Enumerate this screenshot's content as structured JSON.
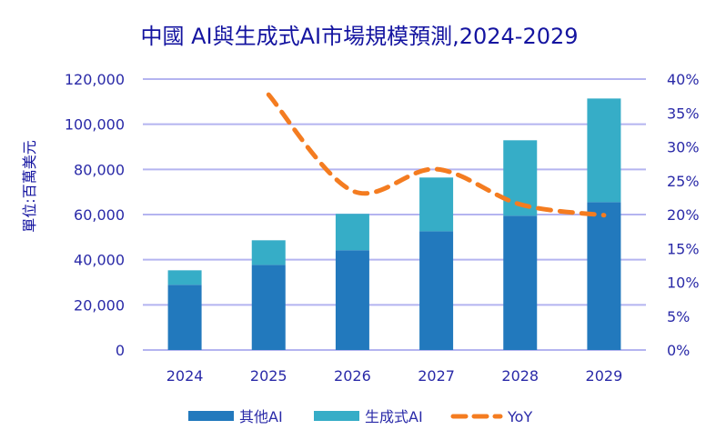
{
  "chart_data": {
    "type": "bar",
    "title": "中國 AI與生成式AI市場規模預測,2024-2029",
    "ylabel": "單位:百萬美元",
    "categories": [
      "2024",
      "2025",
      "2026",
      "2027",
      "2028",
      "2029"
    ],
    "stacked": true,
    "series": [
      {
        "name": "其他AI",
        "type": "bar",
        "axis": "left",
        "color": "#2279bd",
        "values": [
          28900,
          37700,
          44200,
          52600,
          59500,
          65500
        ]
      },
      {
        "name": "生成式AI",
        "type": "bar",
        "axis": "left",
        "color": "#36adc7",
        "values": [
          6400,
          10900,
          16100,
          23800,
          33400,
          45900
        ]
      },
      {
        "name": "YoY",
        "type": "line",
        "axis": "right",
        "style": "dashed",
        "color": "#f47c20",
        "values": [
          null,
          0.377,
          0.235,
          0.267,
          0.215,
          0.199
        ]
      }
    ],
    "ylim": [
      0,
      120000
    ],
    "y2lim": [
      0,
      0.4
    ],
    "yticks": [
      "0",
      "20,000",
      "40,000",
      "60,000",
      "80,000",
      "100,000",
      "120,000"
    ],
    "y2ticks": [
      "0%",
      "5%",
      "10%",
      "15%",
      "20%",
      "25%",
      "30%",
      "35%",
      "40%"
    ],
    "grid": true,
    "legend_position": "bottom",
    "colors": {
      "title": "#1414a0",
      "ticks": "#2a2aa8",
      "grid": "#b4b4f0"
    }
  }
}
